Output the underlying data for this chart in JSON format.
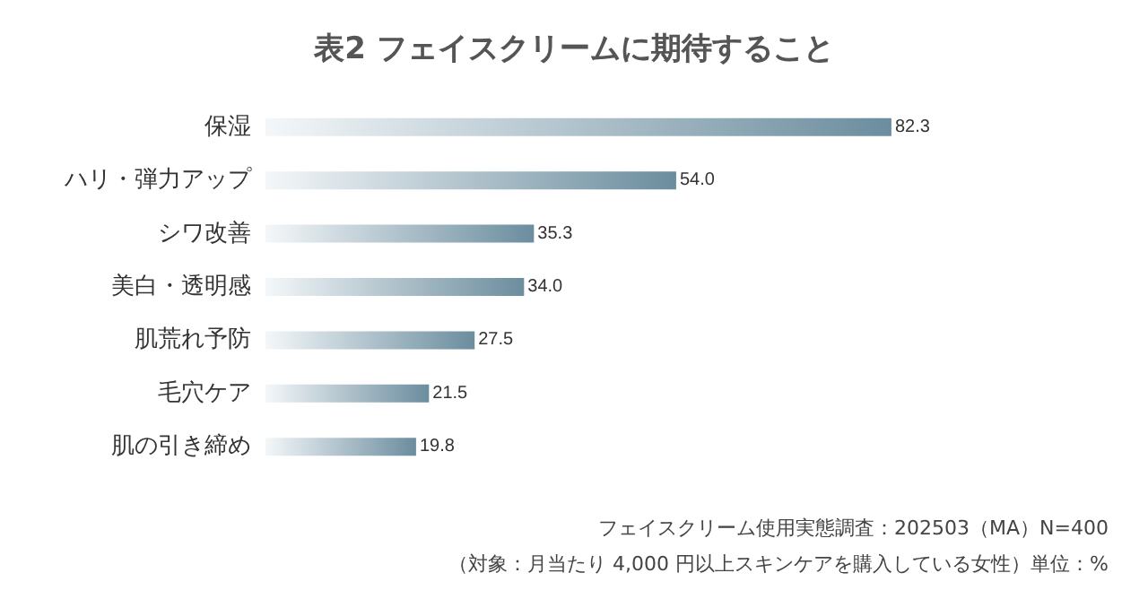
{
  "chart_data": {
    "type": "bar",
    "orientation": "horizontal",
    "title": "表2 フェイスクリームに期待すること",
    "categories": [
      "保湿",
      "ハリ・弾力アップ",
      "シワ改善",
      "美白・透明感",
      "肌荒れ予防",
      "毛穴ケア",
      "肌の引き締め"
    ],
    "values": [
      82.3,
      54.0,
      35.3,
      34.0,
      27.5,
      21.5,
      19.8
    ],
    "value_labels": [
      "82.3",
      "54.0",
      "35.3",
      "34.0",
      "27.5",
      "21.5",
      "19.8"
    ],
    "color": "#6b8d9e",
    "annotations": [
      "フェイスクリーム使用実態調査：202503（MA）N=400",
      "（対象：月当たり 4,000 円以上スキンケアを購入している女性）単位：%"
    ]
  }
}
